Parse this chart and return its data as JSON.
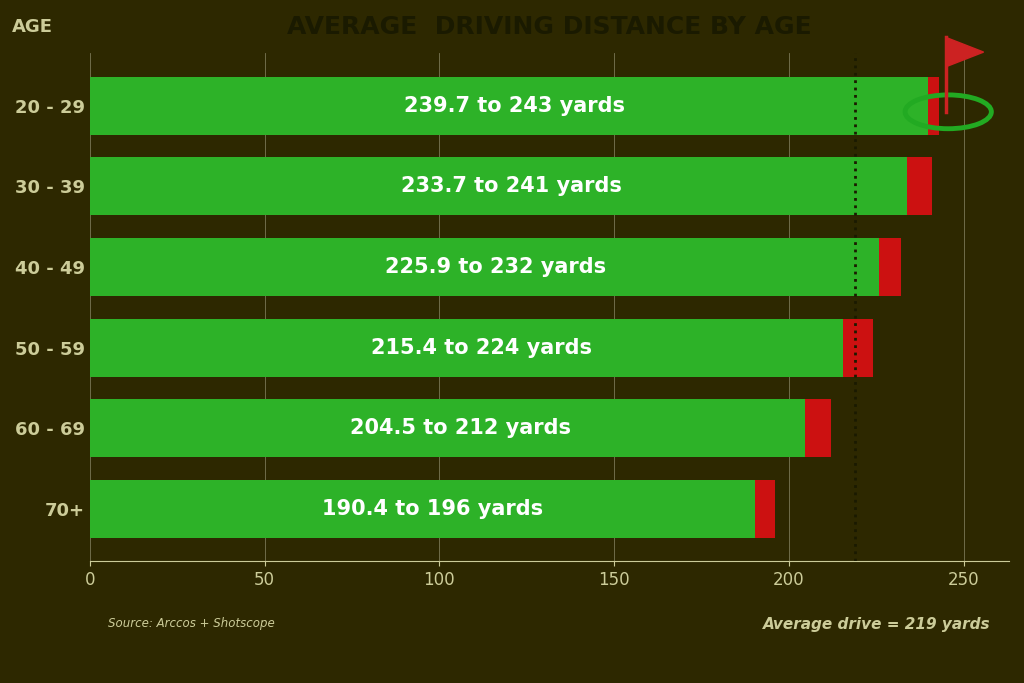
{
  "title": "AVERAGE  DRIVING DISTANCE BY AGE",
  "background_color": "#2d2800",
  "categories": [
    "20 - 29",
    "30 - 39",
    "40 - 49",
    "50 - 59",
    "60 - 69",
    "70+"
  ],
  "green_lower": [
    239.7,
    233.7,
    225.9,
    215.4,
    204.5,
    190.4
  ],
  "green_upper": [
    243.0,
    241.0,
    232.0,
    224.0,
    212.0,
    196.0
  ],
  "labels": [
    "239.7 to 243 yards",
    "233.7 to 241 yards",
    "225.9 to 232 yards",
    "215.4 to 224 yards",
    "204.5 to 212 yards",
    "190.4 to 196 yards"
  ],
  "green_color": "#2db228",
  "red_color": "#cc1111",
  "avg_line": 219,
  "avg_label": "Average drive = 219 yards",
  "source_text": "Source: Arccos + Shotscope",
  "xlim": [
    0,
    263
  ],
  "xticks": [
    0,
    50,
    100,
    150,
    200,
    250
  ],
  "tick_color": "#cccc99",
  "title_color": "#1a1a00",
  "bar_label_fontsize": 15,
  "bar_label_color": "#ffffff",
  "age_label": "AGE",
  "bar_height": 0.72,
  "red_widths": [
    3.3,
    7.3,
    6.1,
    8.6,
    7.5,
    5.6
  ]
}
